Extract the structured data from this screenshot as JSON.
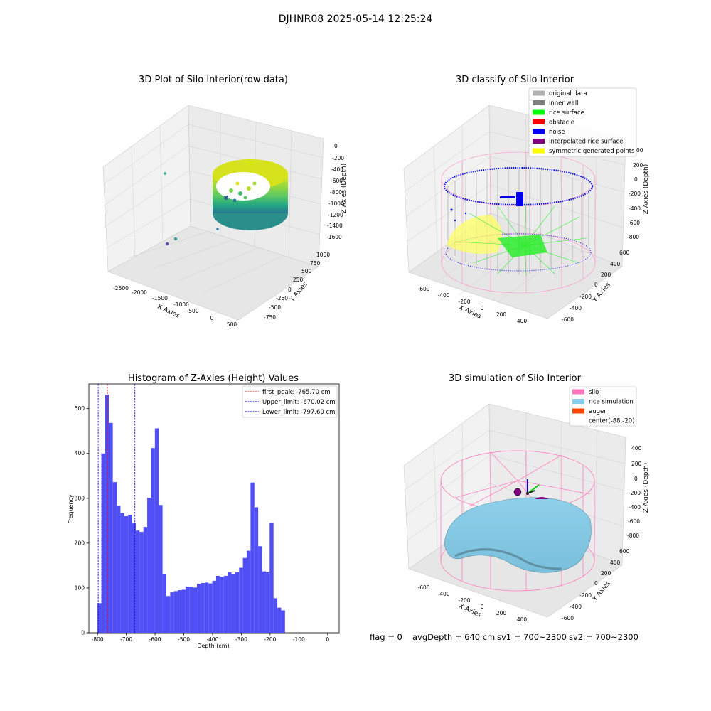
{
  "figure": {
    "title": "DJHNR08 2025-05-14 12:25:24",
    "footer": {
      "flag": "flag = 0",
      "avg_depth": "avgDepth = 640 cm",
      "sv1": "sv1 = 700~2300",
      "sv2": "sv2 = 700~2300"
    }
  },
  "colors": {
    "hist_bar": "#4f4ff5",
    "first_peak_line": "#ff0000",
    "limit_line": "#0000ff",
    "silo_wire": "#ff77bb",
    "rice_surface": "#87ceeb",
    "auger": "#ff4500"
  },
  "chart_data": [
    {
      "type": "scatter",
      "subtype": "3d",
      "title": "3D Plot of Silo Interior(row data)",
      "xlabel": "X Axies",
      "ylabel": "Y Axies",
      "zlabel": "Z Axies (Depth)",
      "x_ticks": [
        "-2500",
        "-2000",
        "-1500",
        "-1000",
        "-500",
        "0",
        "500"
      ],
      "y_ticks": [
        "-750",
        "-500",
        "-250",
        "0",
        "250",
        "500",
        "750",
        "1000"
      ],
      "z_ticks": [
        "0",
        "-200",
        "-400",
        "-600",
        "-800",
        "-1000",
        "-1200",
        "-1400",
        "-1600"
      ],
      "colormap": "viridis",
      "grid": true
    },
    {
      "type": "scatter",
      "subtype": "3d",
      "title": "3D classify of Silo Interior",
      "xlabel": "X Axies",
      "ylabel": "Y Axies",
      "zlabel": "Z Axies (Depth)",
      "x_ticks": [
        "-600",
        "-400",
        "-200",
        "0",
        "200",
        "400"
      ],
      "y_ticks": [
        "-600",
        "-400",
        "-200",
        "0",
        "200",
        "400",
        "600"
      ],
      "z_ticks": [
        "200",
        "0",
        "-200",
        "-400",
        "-600",
        "-800"
      ],
      "z_ticks_partial": [
        "00"
      ],
      "legend": [
        {
          "label": "original data",
          "color": "#b0b0b0"
        },
        {
          "label": "inner wall",
          "color": "#808080"
        },
        {
          "label": "rice surface",
          "color": "#00ff00"
        },
        {
          "label": "obstacle",
          "color": "#ff0000"
        },
        {
          "label": "noise",
          "color": "#0000ff"
        },
        {
          "label": "interpolated rice surface",
          "color": "#800080"
        },
        {
          "label": "symmetric generated points",
          "color": "#ffff00"
        }
      ],
      "legend_position": "top-right",
      "grid": true
    },
    {
      "type": "bar",
      "subtype": "histogram",
      "title": "Histogram of Z-Axies (Height) Values",
      "xlabel": "Depth (cm)",
      "ylabel": "Frequency",
      "xlim": [
        -830,
        40
      ],
      "ylim": [
        0,
        555
      ],
      "x_ticks": [
        -800,
        -700,
        -600,
        -500,
        -400,
        -300,
        -200,
        -100,
        0
      ],
      "y_ticks": [
        0,
        100,
        200,
        300,
        400,
        500
      ],
      "bin_start": -800,
      "bin_width": 13.3,
      "values": [
        66,
        400,
        531,
        468,
        336,
        283,
        267,
        260,
        263,
        244,
        228,
        225,
        236,
        301,
        412,
        456,
        285,
        130,
        82,
        91,
        93,
        95,
        96,
        103,
        103,
        101,
        109,
        111,
        112,
        110,
        116,
        127,
        125,
        127,
        135,
        130,
        135,
        145,
        167,
        183,
        335,
        280,
        193,
        137,
        135,
        245,
        77,
        56,
        50
      ],
      "vlines": [
        {
          "label": "first_peak: -765.70 cm",
          "x": -765.7,
          "color": "#ff0000"
        },
        {
          "label": "Upper_limit: -670.02 cm",
          "x": -670.02,
          "color": "#0000ff"
        },
        {
          "label": "Lower_limit: -797.60 cm",
          "x": -797.6,
          "color": "#0000ff"
        }
      ],
      "legend_position": "top-right",
      "grid": false
    },
    {
      "type": "area",
      "subtype": "3d-surface",
      "title": "3D simulation of Silo Interior",
      "xlabel": "X Axies",
      "ylabel": "Y Axies",
      "zlabel": "Z Axies (Depth)",
      "x_ticks": [
        "-600",
        "-400",
        "-200",
        "0",
        "200",
        "400"
      ],
      "y_ticks": [
        "-600",
        "-400",
        "-200",
        "0",
        "200",
        "400",
        "600"
      ],
      "z_ticks": [
        "400",
        "200",
        "0",
        "-200",
        "-400",
        "-600",
        "-800"
      ],
      "legend": [
        {
          "label": "silo",
          "color": "#ff77bb"
        },
        {
          "label": "rice simulation",
          "color": "#87ceeb"
        },
        {
          "label": "auger",
          "color": "#ff4500"
        },
        {
          "label": "center(-88,-20)",
          "color": ""
        }
      ],
      "legend_position": "top-right",
      "grid": true
    }
  ]
}
